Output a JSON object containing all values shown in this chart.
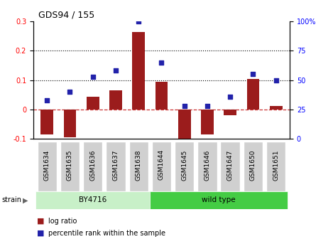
{
  "title": "GDS94 / 155",
  "categories": [
    "GSM1634",
    "GSM1635",
    "GSM1636",
    "GSM1637",
    "GSM1638",
    "GSM1644",
    "GSM1645",
    "GSM1646",
    "GSM1647",
    "GSM1650",
    "GSM1651"
  ],
  "log_ratio": [
    -0.085,
    -0.095,
    0.042,
    0.065,
    0.265,
    0.095,
    -0.105,
    -0.085,
    -0.02,
    0.105,
    0.012
  ],
  "percentile_rank_pct": [
    33,
    40,
    53,
    58,
    100,
    65,
    28,
    28,
    36,
    55,
    50
  ],
  "bar_color": "#9b1c1c",
  "dot_color": "#2222aa",
  "ylim_left": [
    -0.1,
    0.3
  ],
  "ylim_right": [
    0,
    100
  ],
  "yticks_left": [
    -0.1,
    0.0,
    0.1,
    0.2,
    0.3
  ],
  "yticks_right": [
    0,
    25,
    50,
    75,
    100
  ],
  "hlines": [
    0.1,
    0.2
  ],
  "dashed_hline_color": "#cc3333",
  "strain_groups": [
    {
      "label": "BY4716",
      "start": 0,
      "end": 5,
      "color": "#c8f0c8"
    },
    {
      "label": "wild type",
      "start": 5,
      "end": 11,
      "color": "#44cc44"
    }
  ],
  "strain_row_label": "strain",
  "legend_bar_label": "log ratio",
  "legend_dot_label": "percentile rank within the sample",
  "bg_color": "#ffffff",
  "title_fontsize": 9,
  "axis_label_fontsize": 7,
  "tick_label_fontsize": 6.5
}
